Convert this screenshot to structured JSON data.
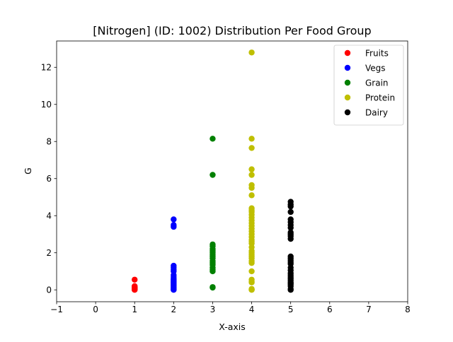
{
  "chart_data": {
    "type": "scatter",
    "title": "[Nitrogen] (ID: 1002) Distribution Per Food Group",
    "xlabel": "X-axis",
    "ylabel": "G",
    "xlim": [
      -1,
      8
    ],
    "ylim": [
      -0.64,
      13.42
    ],
    "xticks": [
      -1,
      0,
      1,
      2,
      3,
      4,
      5,
      6,
      7,
      8
    ],
    "yticks": [
      0,
      2,
      4,
      6,
      8,
      10,
      12
    ],
    "grid": false,
    "legend_position": "top-right",
    "series": [
      {
        "name": "Fruits",
        "color": "#ff0000",
        "x": [
          1,
          1,
          1,
          1,
          1,
          1,
          1,
          1,
          1,
          1
        ],
        "y": [
          0.55,
          0.2,
          0.15,
          0.12,
          0.1,
          0.08,
          0.06,
          0.04,
          0.02,
          0.0
        ]
      },
      {
        "name": "Vegs",
        "color": "#0000ff",
        "x": [
          2,
          2,
          2,
          2,
          2,
          2,
          2,
          2,
          2,
          2,
          2,
          2,
          2,
          2,
          2,
          2,
          2,
          2,
          2,
          2,
          2,
          2,
          2
        ],
        "y": [
          3.8,
          3.5,
          3.4,
          1.3,
          1.2,
          1.1,
          1.0,
          0.8,
          0.7,
          0.6,
          0.55,
          0.5,
          0.45,
          0.4,
          0.35,
          0.3,
          0.25,
          0.2,
          0.15,
          0.1,
          0.05,
          0.02,
          0.0
        ]
      },
      {
        "name": "Grain",
        "color": "#008000",
        "x": [
          3,
          3,
          3,
          3,
          3,
          3,
          3,
          3,
          3,
          3,
          3,
          3,
          3,
          3,
          3,
          3,
          3,
          3
        ],
        "y": [
          8.15,
          6.2,
          2.45,
          2.35,
          2.2,
          2.1,
          2.0,
          1.9,
          1.8,
          1.7,
          1.55,
          1.45,
          1.35,
          1.2,
          1.1,
          1.0,
          0.15,
          0.12
        ]
      },
      {
        "name": "Protein",
        "color": "#bfbf00",
        "x": [
          4,
          4,
          4,
          4,
          4,
          4,
          4,
          4,
          4,
          4,
          4,
          4,
          4,
          4,
          4,
          4,
          4,
          4,
          4,
          4,
          4,
          4,
          4,
          4,
          4,
          4,
          4,
          4,
          4,
          4,
          4,
          4,
          4,
          4,
          4,
          4,
          4,
          4,
          4
        ],
        "y": [
          12.8,
          8.15,
          7.65,
          6.5,
          6.2,
          5.65,
          5.5,
          5.1,
          4.4,
          4.3,
          4.2,
          4.05,
          3.9,
          3.75,
          3.6,
          3.45,
          3.3,
          3.15,
          3.0,
          2.85,
          2.7,
          2.6,
          2.5,
          2.3,
          2.1,
          2.0,
          1.9,
          1.8,
          1.7,
          1.55,
          1.45,
          1.0,
          0.55,
          0.45,
          0.4,
          0.05,
          0.02,
          0.01,
          0.0
        ]
      },
      {
        "name": "Dairy",
        "color": "#000000",
        "x": [
          5,
          5,
          5,
          5,
          5,
          5,
          5,
          5,
          5,
          5,
          5,
          5,
          5,
          5,
          5,
          5,
          5,
          5,
          5,
          5,
          5,
          5,
          5,
          5,
          5,
          5,
          5,
          5,
          5,
          5
        ],
        "y": [
          4.75,
          4.6,
          4.5,
          4.2,
          3.8,
          3.65,
          3.5,
          3.35,
          3.1,
          3.0,
          2.9,
          2.75,
          1.8,
          1.7,
          1.6,
          1.5,
          1.4,
          1.2,
          1.05,
          0.9,
          0.8,
          0.7,
          0.6,
          0.5,
          0.4,
          0.35,
          0.3,
          0.2,
          0.05,
          0.0
        ]
      }
    ]
  }
}
